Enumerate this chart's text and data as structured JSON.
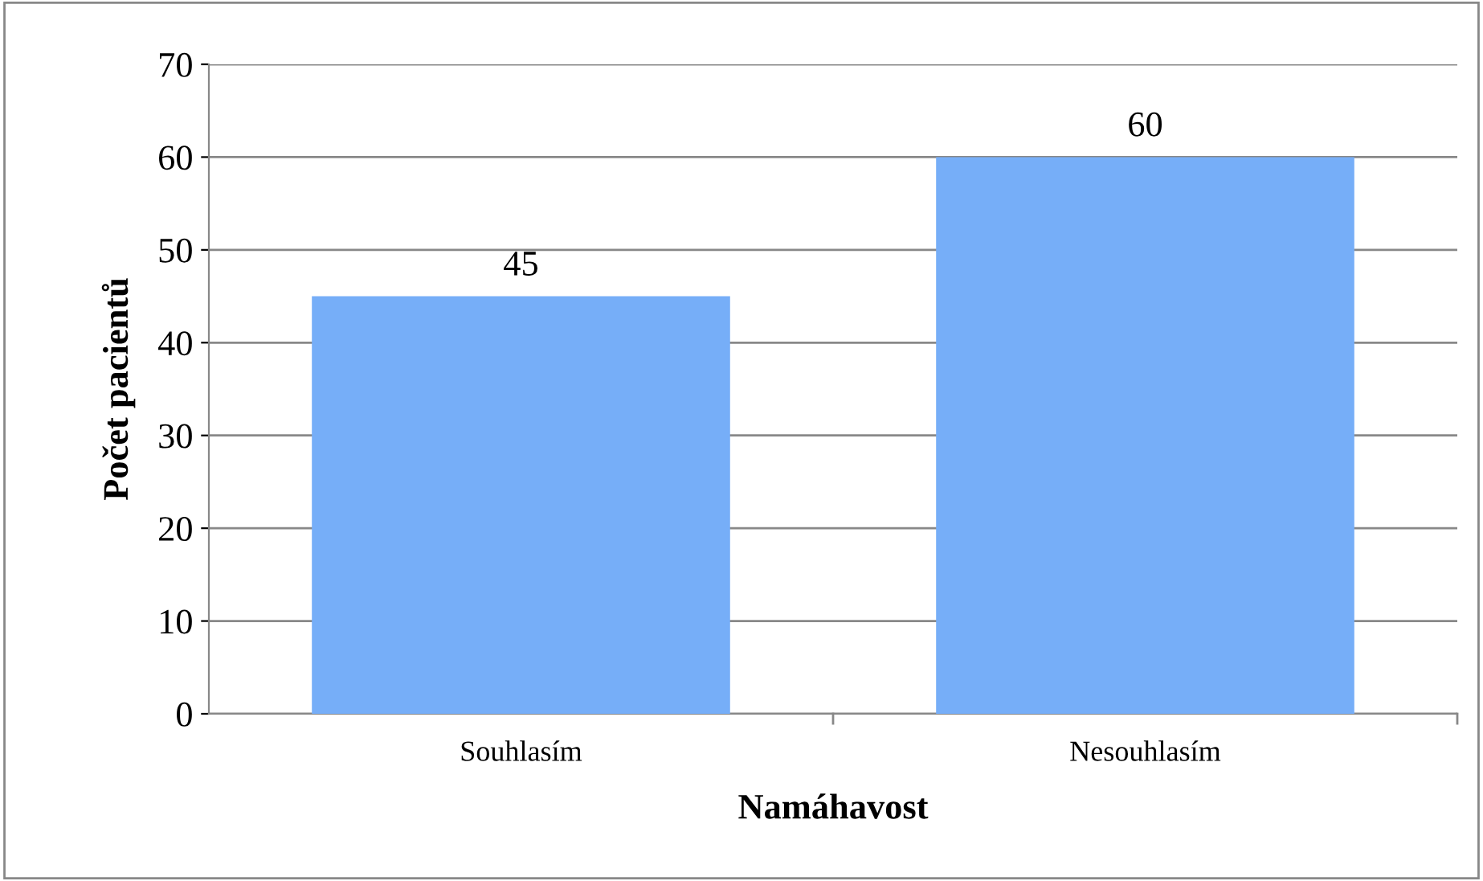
{
  "chart_data": {
    "type": "bar",
    "categories": [
      "Souhlasím",
      "Nesouhlasím"
    ],
    "values": [
      45,
      60
    ],
    "color": "#76aef8",
    "xlabel": "Namáhavost",
    "ylabel": "Počet pacientů",
    "ylim": [
      0,
      70
    ],
    "yticks": [
      0,
      10,
      20,
      30,
      40,
      50,
      60,
      70
    ],
    "grid": "y",
    "data_labels": true,
    "legend": false
  }
}
